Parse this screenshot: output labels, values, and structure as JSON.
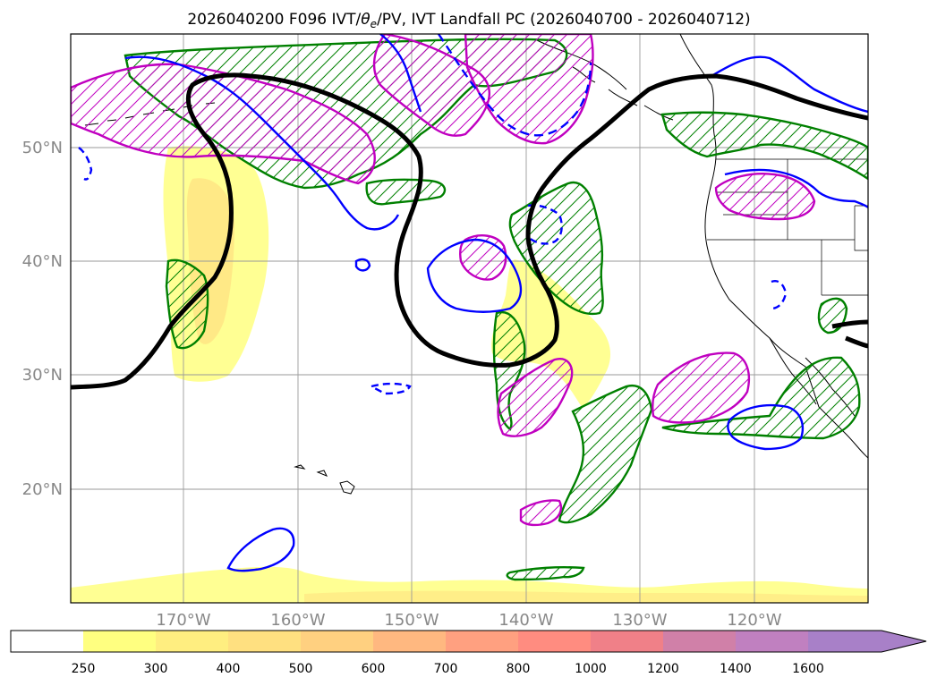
{
  "chart_data": {
    "type": "map",
    "title": {
      "prefix": "2026040200 F096 IVT/",
      "theta": "θ",
      "theta_sub": "e",
      "suffix": "/PV, IVT Landfall PC (2026040700 - 2026040712)"
    },
    "map_extent": {
      "lon": [
        -180,
        -110
      ],
      "lat": [
        10,
        60
      ]
    },
    "x_ticks": [
      {
        "lon": -170,
        "label": "170°W"
      },
      {
        "lon": -160,
        "label": "160°W"
      },
      {
        "lon": -150,
        "label": "150°W"
      },
      {
        "lon": -140,
        "label": "140°W"
      },
      {
        "lon": -130,
        "label": "130°W"
      },
      {
        "lon": -120,
        "label": "120°W"
      }
    ],
    "y_ticks": [
      {
        "lat": 20,
        "label": "20°N"
      },
      {
        "lat": 30,
        "label": "30°N"
      },
      {
        "lat": 40,
        "label": "40°N"
      },
      {
        "lat": 50,
        "label": "50°N"
      }
    ],
    "grid": true,
    "colorbar": {
      "extend": "max",
      "levels": [
        "250",
        "300",
        "400",
        "500",
        "600",
        "700",
        "800",
        "1000",
        "1200",
        "1400",
        "1600"
      ],
      "colors": [
        "#ffffff",
        "#ffff80",
        "#ffee80",
        "#ffe080",
        "#ffd080",
        "#ffb880",
        "#ffa080",
        "#ff8c80",
        "#f08088",
        "#d080a8",
        "#c080c0",
        "#a880c8"
      ]
    },
    "colors": {
      "blue_contour": "#0000ff",
      "green_contour": "#008000",
      "magenta_contour": "#c000c0",
      "thick_line": "#000000",
      "ivt_fill": "#ffff80",
      "ivt_fill_core": "#ffe080"
    },
    "regions": {
      "yellow_ivt": [
        {
          "name": "central-pacific-plume",
          "lon": [
            -175.5,
            -172
          ],
          "lat": [
            30,
            49
          ]
        },
        {
          "name": "subtropical-plume",
          "lon": [
            -140,
            -134
          ],
          "lat": [
            27,
            40
          ]
        }
      ],
      "green_hatched_closed": [
        {
          "name": "gulf-of-alaska",
          "lon": [
            -145,
            -135
          ],
          "lat": [
            45,
            58
          ]
        },
        {
          "name": "baja-region",
          "lon": [
            -127,
            -117
          ],
          "lat": [
            22,
            30
          ]
        }
      ],
      "magenta_hatched_closed": [
        {
          "name": "north-pacific-band",
          "lon": [
            -180,
            -150
          ],
          "lat": [
            49,
            59
          ]
        },
        {
          "name": "mid-pacific-oval",
          "lon": [
            -141,
            -135
          ],
          "lat": [
            15,
            32
          ]
        }
      ],
      "blue_closed_contours": [
        {
          "name": "cutoff-low",
          "lon": [
            -148,
            -142
          ],
          "lat": [
            33,
            40
          ]
        },
        {
          "name": "mexico-low",
          "lon": [
            -122,
            -118
          ],
          "lat": [
            22,
            25
          ]
        }
      ],
      "thick_black_line": {
        "description": "troughs near 150W and 180W, ridge near 125W"
      }
    }
  }
}
